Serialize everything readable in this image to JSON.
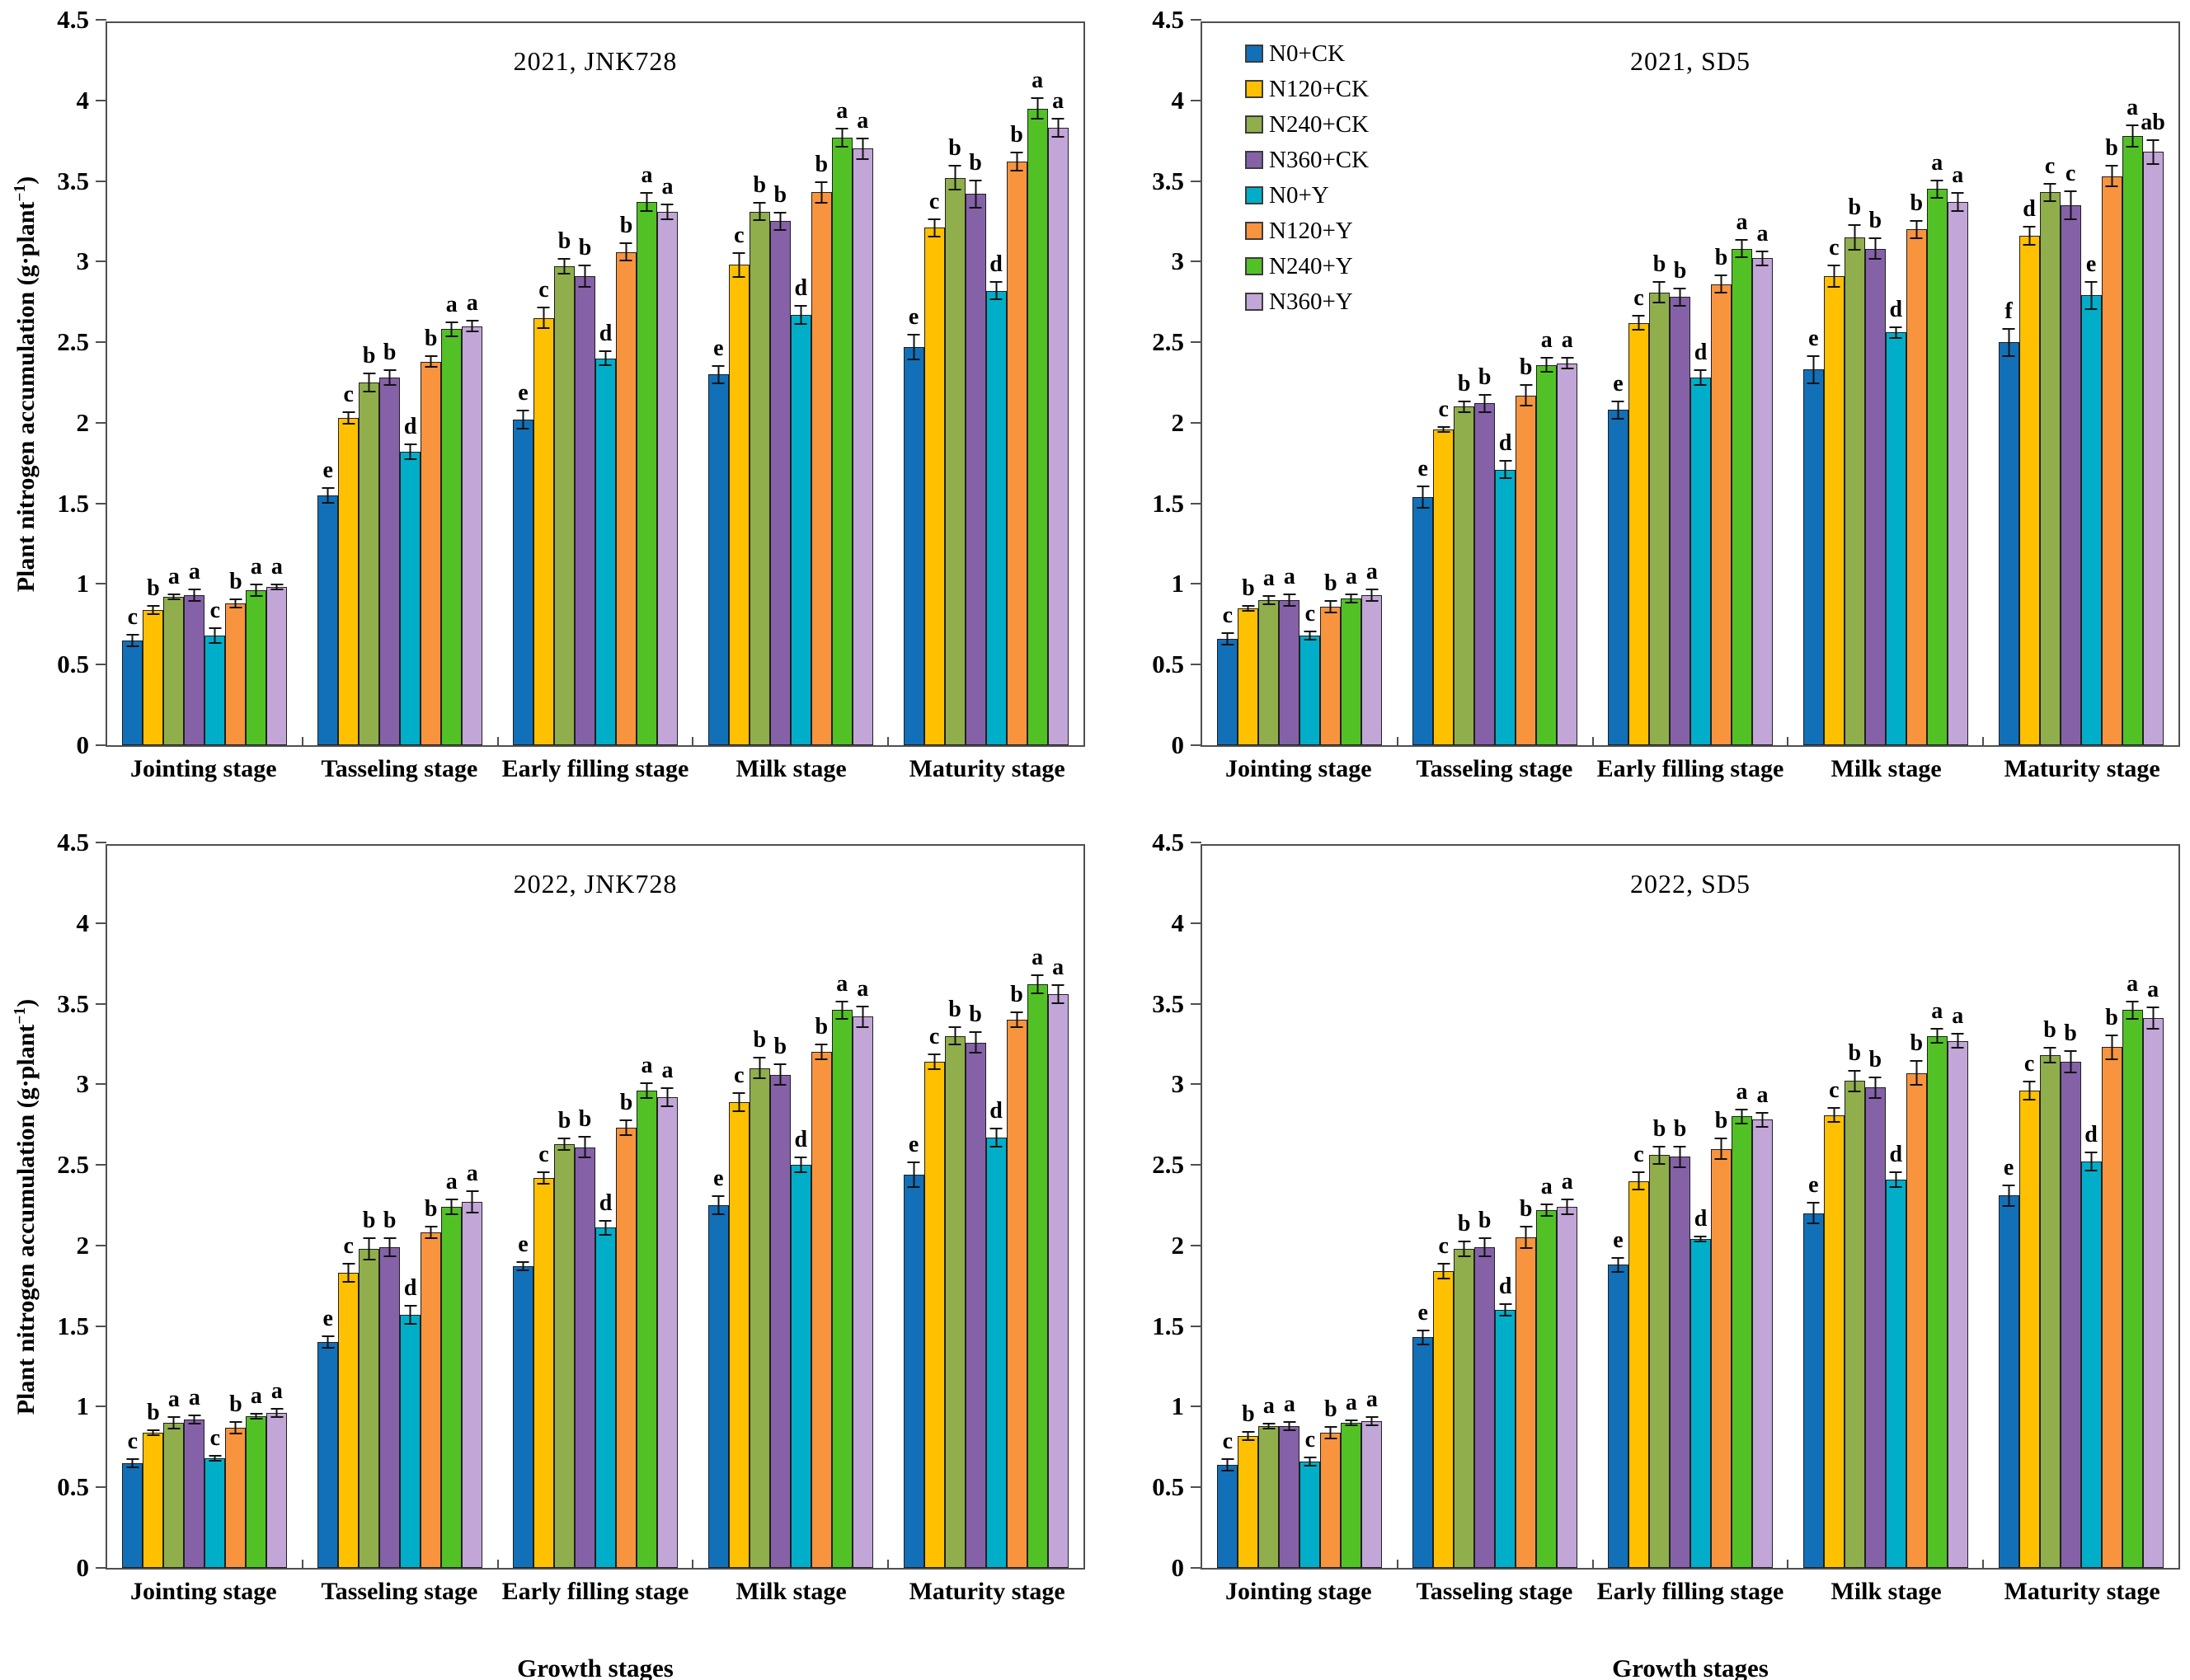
{
  "y_axis": {
    "prefix": "Plant nitrogen accumulation (g·plant",
    "superscript": "−1",
    "suffix": ")"
  },
  "chart_data": {
    "type": "bar",
    "xlabel": "Growth stages",
    "ylabel": "Plant nitrogen accumulation (g·plant−1)",
    "ylim": [
      0,
      4.5
    ],
    "ytick_step": 0.5,
    "yticks": [
      "4.5",
      "4",
      "3.5",
      "3",
      "2.5",
      "2",
      "1.5",
      "1",
      "0.5",
      "0"
    ],
    "grid": false,
    "legend_position": "inside-top-left-of-second-panel",
    "categories": [
      "Jointing stage",
      "Tasseling stage",
      "Early filling stage",
      "Milk stage",
      "Maturity stage"
    ],
    "series": [
      {
        "name": "N0+CK",
        "color": "#1170B8"
      },
      {
        "name": "N120+CK",
        "color": "#FFC000"
      },
      {
        "name": "N240+CK",
        "color": "#90AE4B"
      },
      {
        "name": "N360+CK",
        "color": "#8561A8"
      },
      {
        "name": "N0+Y",
        "color": "#00AEC9"
      },
      {
        "name": "N120+Y",
        "color": "#F8943E"
      },
      {
        "name": "N240+Y",
        "color": "#52C125"
      },
      {
        "name": "N360+Y",
        "color": "#C3A6D8"
      }
    ],
    "panels": [
      {
        "title": "2021, JNK728",
        "values": [
          [
            0.65,
            0.84,
            0.92,
            0.93,
            0.68,
            0.88,
            0.96,
            0.98
          ],
          [
            1.55,
            2.03,
            2.25,
            2.28,
            1.82,
            2.38,
            2.58,
            2.6
          ],
          [
            2.02,
            2.65,
            2.97,
            2.91,
            2.4,
            3.06,
            3.37,
            3.31
          ],
          [
            2.3,
            2.98,
            3.31,
            3.25,
            2.67,
            3.43,
            3.77,
            3.7
          ],
          [
            2.47,
            3.21,
            3.52,
            3.42,
            2.82,
            3.62,
            3.95,
            3.83
          ]
        ],
        "errors": [
          [
            0.04,
            0.03,
            0.02,
            0.04,
            0.05,
            0.03,
            0.04,
            0.02
          ],
          [
            0.05,
            0.04,
            0.06,
            0.05,
            0.05,
            0.04,
            0.05,
            0.04
          ],
          [
            0.06,
            0.07,
            0.05,
            0.07,
            0.05,
            0.06,
            0.06,
            0.05
          ],
          [
            0.06,
            0.08,
            0.06,
            0.06,
            0.06,
            0.07,
            0.06,
            0.07
          ],
          [
            0.08,
            0.06,
            0.08,
            0.09,
            0.06,
            0.06,
            0.07,
            0.06
          ]
        ],
        "letters": [
          [
            "c",
            "b",
            "a",
            "a",
            "c",
            "b",
            "a",
            "a"
          ],
          [
            "e",
            "c",
            "b",
            "b",
            "d",
            "b",
            "a",
            "a"
          ],
          [
            "e",
            "c",
            "b",
            "b",
            "d",
            "b",
            "a",
            "a"
          ],
          [
            "e",
            "c",
            "b",
            "b",
            "d",
            "b",
            "a",
            "a"
          ],
          [
            "e",
            "c",
            "b",
            "b",
            "d",
            "b",
            "a",
            "a"
          ]
        ]
      },
      {
        "title": "2021, SD5",
        "values": [
          [
            0.66,
            0.85,
            0.9,
            0.9,
            0.68,
            0.86,
            0.91,
            0.93
          ],
          [
            1.54,
            1.96,
            2.1,
            2.12,
            1.71,
            2.17,
            2.36,
            2.37
          ],
          [
            2.08,
            2.62,
            2.81,
            2.78,
            2.28,
            2.86,
            3.08,
            3.02
          ],
          [
            2.33,
            2.91,
            3.15,
            3.08,
            2.56,
            3.2,
            3.45,
            3.37
          ],
          [
            2.5,
            3.16,
            3.43,
            3.35,
            2.79,
            3.53,
            3.78,
            3.68
          ]
        ],
        "errors": [
          [
            0.04,
            0.02,
            0.03,
            0.04,
            0.03,
            0.04,
            0.03,
            0.04
          ],
          [
            0.07,
            0.02,
            0.04,
            0.06,
            0.06,
            0.07,
            0.05,
            0.04
          ],
          [
            0.06,
            0.05,
            0.07,
            0.06,
            0.05,
            0.06,
            0.06,
            0.05
          ],
          [
            0.09,
            0.07,
            0.08,
            0.07,
            0.04,
            0.06,
            0.06,
            0.06
          ],
          [
            0.09,
            0.06,
            0.06,
            0.09,
            0.09,
            0.07,
            0.07,
            0.08
          ]
        ],
        "letters": [
          [
            "c",
            "b",
            "a",
            "a",
            "c",
            "b",
            "a",
            "a"
          ],
          [
            "e",
            "c",
            "b",
            "b",
            "d",
            "b",
            "a",
            "a"
          ],
          [
            "e",
            "c",
            "b",
            "b",
            "d",
            "b",
            "a",
            "a"
          ],
          [
            "e",
            "c",
            "b",
            "b",
            "d",
            "b",
            "a",
            "a"
          ],
          [
            "f",
            "d",
            "c",
            "c",
            "e",
            "b",
            "a",
            "ab"
          ]
        ]
      },
      {
        "title": "2022, JNK728",
        "values": [
          [
            0.65,
            0.84,
            0.9,
            0.92,
            0.68,
            0.87,
            0.94,
            0.96
          ],
          [
            1.4,
            1.83,
            1.98,
            1.99,
            1.57,
            2.08,
            2.24,
            2.27
          ],
          [
            1.87,
            2.42,
            2.63,
            2.61,
            2.11,
            2.73,
            2.96,
            2.92
          ],
          [
            2.25,
            2.89,
            3.1,
            3.06,
            2.5,
            3.2,
            3.46,
            3.42
          ],
          [
            2.44,
            3.14,
            3.3,
            3.26,
            2.67,
            3.4,
            3.62,
            3.56
          ]
        ],
        "errors": [
          [
            0.03,
            0.02,
            0.04,
            0.03,
            0.02,
            0.04,
            0.02,
            0.03
          ],
          [
            0.04,
            0.06,
            0.07,
            0.06,
            0.06,
            0.04,
            0.05,
            0.07
          ],
          [
            0.03,
            0.04,
            0.04,
            0.07,
            0.05,
            0.05,
            0.05,
            0.06
          ],
          [
            0.06,
            0.06,
            0.07,
            0.07,
            0.05,
            0.05,
            0.06,
            0.07
          ],
          [
            0.08,
            0.05,
            0.06,
            0.07,
            0.06,
            0.05,
            0.06,
            0.06
          ]
        ],
        "letters": [
          [
            "c",
            "b",
            "a",
            "a",
            "c",
            "b",
            "a",
            "a"
          ],
          [
            "e",
            "c",
            "b",
            "b",
            "d",
            "b",
            "a",
            "a"
          ],
          [
            "e",
            "c",
            "b",
            "b",
            "d",
            "b",
            "a",
            "a"
          ],
          [
            "e",
            "c",
            "b",
            "b",
            "d",
            "b",
            "a",
            "a"
          ],
          [
            "e",
            "c",
            "b",
            "b",
            "d",
            "b",
            "a",
            "a"
          ]
        ]
      },
      {
        "title": "2022, SD5",
        "values": [
          [
            0.64,
            0.82,
            0.88,
            0.88,
            0.66,
            0.84,
            0.9,
            0.91
          ],
          [
            1.43,
            1.84,
            1.98,
            1.99,
            1.6,
            2.05,
            2.22,
            2.24
          ],
          [
            1.88,
            2.4,
            2.56,
            2.55,
            2.04,
            2.6,
            2.8,
            2.78
          ],
          [
            2.2,
            2.81,
            3.02,
            2.98,
            2.41,
            3.07,
            3.3,
            3.27
          ],
          [
            2.31,
            2.96,
            3.18,
            3.14,
            2.52,
            3.23,
            3.46,
            3.41
          ]
        ],
        "errors": [
          [
            0.04,
            0.03,
            0.02,
            0.03,
            0.03,
            0.04,
            0.02,
            0.03
          ],
          [
            0.05,
            0.05,
            0.05,
            0.06,
            0.04,
            0.07,
            0.04,
            0.05
          ],
          [
            0.05,
            0.06,
            0.06,
            0.07,
            0.02,
            0.07,
            0.05,
            0.05
          ],
          [
            0.07,
            0.05,
            0.07,
            0.07,
            0.05,
            0.08,
            0.05,
            0.05
          ],
          [
            0.07,
            0.06,
            0.05,
            0.07,
            0.06,
            0.08,
            0.06,
            0.07
          ]
        ],
        "letters": [
          [
            "c",
            "b",
            "a",
            "a",
            "c",
            "b",
            "a",
            "a"
          ],
          [
            "e",
            "c",
            "b",
            "b",
            "d",
            "b",
            "a",
            "a"
          ],
          [
            "e",
            "c",
            "b",
            "b",
            "d",
            "b",
            "a",
            "a"
          ],
          [
            "e",
            "c",
            "b",
            "b",
            "d",
            "b",
            "a",
            "a"
          ],
          [
            "e",
            "c",
            "b",
            "b",
            "d",
            "b",
            "a",
            "a"
          ]
        ]
      }
    ]
  }
}
